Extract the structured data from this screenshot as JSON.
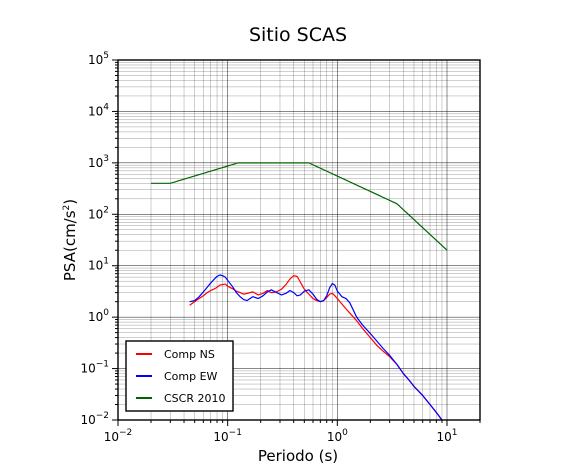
{
  "chart_data": {
    "type": "line",
    "title": "Sitio SCAS",
    "xlabel": "Periodo (s)",
    "ylabel": "PSA(cm/s",
    "ylabel_sup": "2",
    "ylabel_suffix": ")",
    "xscale": "log",
    "yscale": "log",
    "xlim": [
      0.01,
      20
    ],
    "ylim": [
      0.01,
      100000
    ],
    "grid": true,
    "legend_position": "bottom-left",
    "x_ticks": [
      {
        "base": "10",
        "exp": "−2"
      },
      {
        "base": "10",
        "exp": "−1"
      },
      {
        "base": "10",
        "exp": "0"
      },
      {
        "base": "10",
        "exp": "1"
      }
    ],
    "y_ticks": [
      {
        "base": "10",
        "exp": "−2"
      },
      {
        "base": "10",
        "exp": "−1"
      },
      {
        "base": "10",
        "exp": "0"
      },
      {
        "base": "10",
        "exp": "1"
      },
      {
        "base": "10",
        "exp": "2"
      },
      {
        "base": "10",
        "exp": "3"
      },
      {
        "base": "10",
        "exp": "4"
      },
      {
        "base": "10",
        "exp": "5"
      }
    ],
    "series": [
      {
        "name": "Comp NS",
        "color": "#ff0000",
        "points": [
          [
            0.045,
            1.7
          ],
          [
            0.05,
            2.0
          ],
          [
            0.055,
            2.3
          ],
          [
            0.06,
            2.6
          ],
          [
            0.065,
            3.0
          ],
          [
            0.07,
            3.3
          ],
          [
            0.075,
            3.5
          ],
          [
            0.08,
            3.8
          ],
          [
            0.085,
            4.2
          ],
          [
            0.09,
            4.3
          ],
          [
            0.095,
            4.4
          ],
          [
            0.1,
            4.0
          ],
          [
            0.11,
            3.6
          ],
          [
            0.12,
            3.2
          ],
          [
            0.13,
            3.0
          ],
          [
            0.14,
            2.8
          ],
          [
            0.15,
            2.9
          ],
          [
            0.17,
            3.1
          ],
          [
            0.19,
            2.7
          ],
          [
            0.21,
            2.9
          ],
          [
            0.23,
            3.3
          ],
          [
            0.25,
            3.0
          ],
          [
            0.28,
            3.1
          ],
          [
            0.31,
            3.5
          ],
          [
            0.34,
            4.3
          ],
          [
            0.37,
            5.5
          ],
          [
            0.4,
            6.4
          ],
          [
            0.43,
            6.2
          ],
          [
            0.46,
            4.8
          ],
          [
            0.5,
            3.5
          ],
          [
            0.55,
            2.8
          ],
          [
            0.6,
            2.3
          ],
          [
            0.65,
            2.1
          ],
          [
            0.7,
            2.0
          ],
          [
            0.75,
            2.1
          ],
          [
            0.8,
            2.4
          ],
          [
            0.85,
            2.8
          ],
          [
            0.9,
            2.9
          ],
          [
            0.95,
            2.6
          ],
          [
            1.0,
            2.3
          ],
          [
            1.1,
            1.8
          ],
          [
            1.2,
            1.45
          ],
          [
            1.3,
            1.2
          ],
          [
            1.5,
            0.85
          ],
          [
            1.7,
            0.6
          ],
          [
            2.0,
            0.4
          ],
          [
            2.3,
            0.28
          ],
          [
            2.6,
            0.22
          ],
          [
            3.0,
            0.17
          ],
          [
            3.5,
            0.12
          ],
          [
            4.0,
            0.08
          ],
          [
            4.5,
            0.06
          ],
          [
            5.0,
            0.045
          ],
          [
            6.0,
            0.03
          ],
          [
            7.0,
            0.02
          ],
          [
            8.0,
            0.014
          ],
          [
            9.0,
            0.01
          ]
        ]
      },
      {
        "name": "Comp EW",
        "color": "#0000ff",
        "points": [
          [
            0.045,
            2.0
          ],
          [
            0.05,
            2.1
          ],
          [
            0.055,
            2.5
          ],
          [
            0.06,
            3.1
          ],
          [
            0.065,
            3.8
          ],
          [
            0.07,
            4.6
          ],
          [
            0.075,
            5.4
          ],
          [
            0.08,
            6.2
          ],
          [
            0.085,
            6.6
          ],
          [
            0.09,
            6.4
          ],
          [
            0.095,
            6.0
          ],
          [
            0.1,
            5.2
          ],
          [
            0.11,
            4.0
          ],
          [
            0.12,
            3.0
          ],
          [
            0.13,
            2.5
          ],
          [
            0.14,
            2.2
          ],
          [
            0.15,
            2.1
          ],
          [
            0.17,
            2.5
          ],
          [
            0.19,
            2.3
          ],
          [
            0.21,
            2.6
          ],
          [
            0.23,
            3.1
          ],
          [
            0.25,
            3.4
          ],
          [
            0.28,
            3.0
          ],
          [
            0.31,
            2.7
          ],
          [
            0.34,
            2.9
          ],
          [
            0.37,
            3.3
          ],
          [
            0.4,
            3.0
          ],
          [
            0.43,
            2.6
          ],
          [
            0.46,
            2.7
          ],
          [
            0.5,
            3.2
          ],
          [
            0.55,
            3.4
          ],
          [
            0.6,
            2.8
          ],
          [
            0.65,
            2.2
          ],
          [
            0.7,
            2.0
          ],
          [
            0.75,
            2.1
          ],
          [
            0.8,
            2.6
          ],
          [
            0.85,
            3.7
          ],
          [
            0.9,
            4.5
          ],
          [
            0.95,
            4.2
          ],
          [
            1.0,
            3.2
          ],
          [
            1.1,
            2.5
          ],
          [
            1.2,
            2.3
          ],
          [
            1.3,
            1.9
          ],
          [
            1.5,
            1.0
          ],
          [
            1.7,
            0.7
          ],
          [
            2.0,
            0.48
          ],
          [
            2.3,
            0.34
          ],
          [
            2.6,
            0.25
          ],
          [
            3.0,
            0.18
          ],
          [
            3.5,
            0.12
          ],
          [
            4.0,
            0.08
          ],
          [
            4.5,
            0.06
          ],
          [
            5.0,
            0.045
          ],
          [
            6.0,
            0.03
          ],
          [
            7.0,
            0.02
          ],
          [
            8.0,
            0.014
          ],
          [
            9.0,
            0.01
          ]
        ]
      },
      {
        "name": "CSCR 2010",
        "color": "#006400",
        "points": [
          [
            0.02,
            400
          ],
          [
            0.03,
            400
          ],
          [
            0.125,
            1000
          ],
          [
            0.55,
            1000
          ],
          [
            3.5,
            160
          ],
          [
            10,
            20
          ]
        ]
      }
    ]
  }
}
